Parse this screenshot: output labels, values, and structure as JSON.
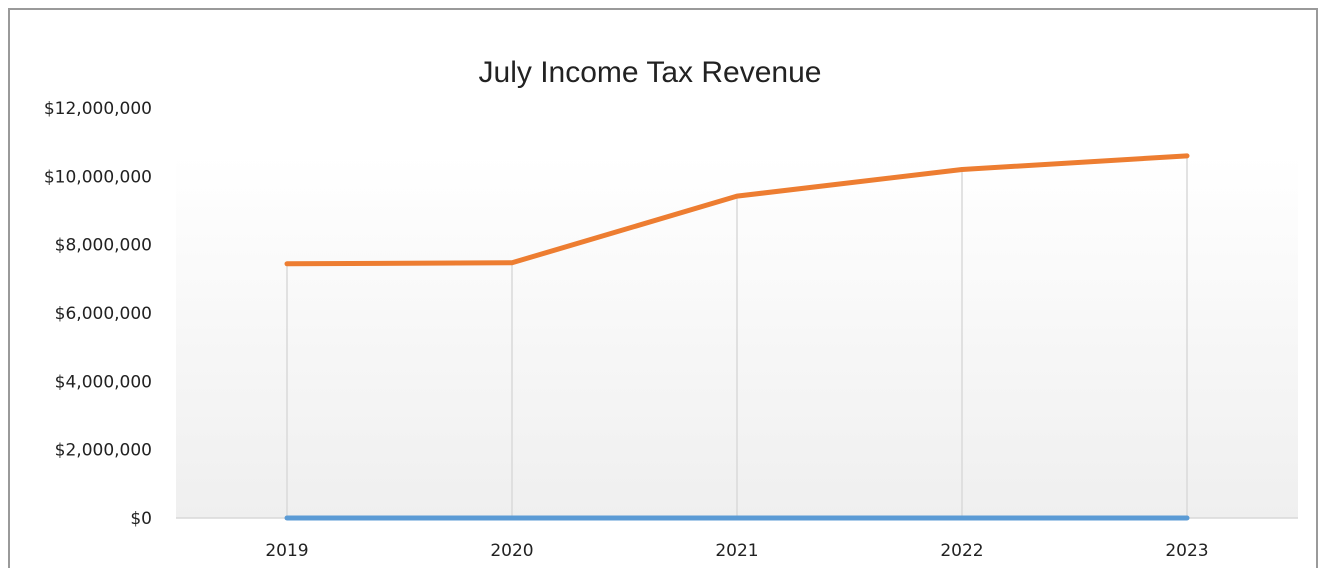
{
  "chart_data": {
    "type": "line",
    "title": "July Income Tax Revenue",
    "xlabel": "",
    "ylabel": "",
    "categories": [
      "2019",
      "2020",
      "2021",
      "2022",
      "2023"
    ],
    "y_tick_labels": [
      "$0",
      "$2,000,000",
      "$4,000,000",
      "$6,000,000",
      "$8,000,000",
      "$10,000,000",
      "$12,000,000"
    ],
    "ylim": [
      0,
      12000000
    ],
    "y_ticks": [
      0,
      2000000,
      4000000,
      6000000,
      8000000,
      10000000,
      12000000
    ],
    "grid": "vertical drop lines at each category",
    "legend": "none",
    "series": [
      {
        "color": "#ED7D31",
        "values": [
          7440000,
          7470000,
          9420000,
          10200000,
          10600000
        ]
      },
      {
        "color": "#5B9BD5",
        "values": [
          0,
          0,
          0,
          0,
          0
        ]
      }
    ]
  }
}
